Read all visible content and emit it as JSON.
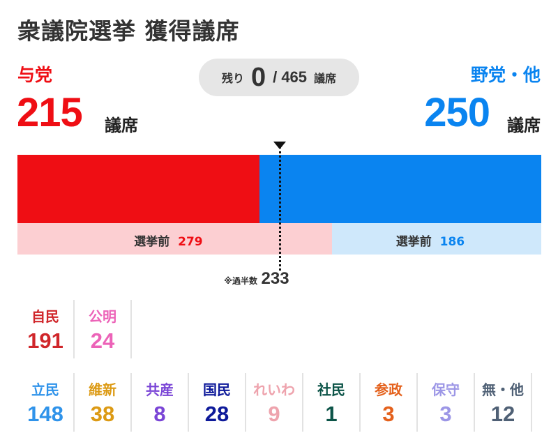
{
  "title": "衆議院選挙 獲得議席",
  "ruling": {
    "label": "与党",
    "seats": "215",
    "unit": "議席",
    "pre_label": "選挙前",
    "pre_seats": "279",
    "color": "#ef0e14"
  },
  "opposition": {
    "label": "野党・他",
    "seats": "250",
    "unit": "議席",
    "pre_label": "選挙前",
    "pre_seats": "186",
    "color": "#0a84f0"
  },
  "remaining": {
    "label": "残り",
    "value": "0",
    "total": "/ 465",
    "unit": "議席"
  },
  "majority": {
    "label": "※過半数",
    "value": "233"
  },
  "seat_values": {
    "total": 465,
    "ruling": 215,
    "ruling_pre": 279,
    "majority": 233
  },
  "ruling_parties": [
    {
      "name": "自民",
      "seats": "191",
      "color": "#d0262a"
    },
    {
      "name": "公明",
      "seats": "24",
      "color": "#ec63b8"
    }
  ],
  "opposition_parties": [
    {
      "name": "立民",
      "seats": "148",
      "color": "#2f93ea"
    },
    {
      "name": "維新",
      "seats": "38",
      "color": "#dc9a14"
    },
    {
      "name": "共産",
      "seats": "8",
      "color": "#7a45d6"
    },
    {
      "name": "国民",
      "seats": "28",
      "color": "#0e1a9a"
    },
    {
      "name": "れいわ",
      "seats": "9",
      "color": "#eea3ad"
    },
    {
      "name": "社民",
      "seats": "1",
      "color": "#0c5448"
    },
    {
      "name": "参政",
      "seats": "3",
      "color": "#e4611c"
    },
    {
      "name": "保守",
      "seats": "3",
      "color": "#9c96e6"
    },
    {
      "name": "無・他",
      "seats": "12",
      "color": "#4f6075"
    }
  ]
}
